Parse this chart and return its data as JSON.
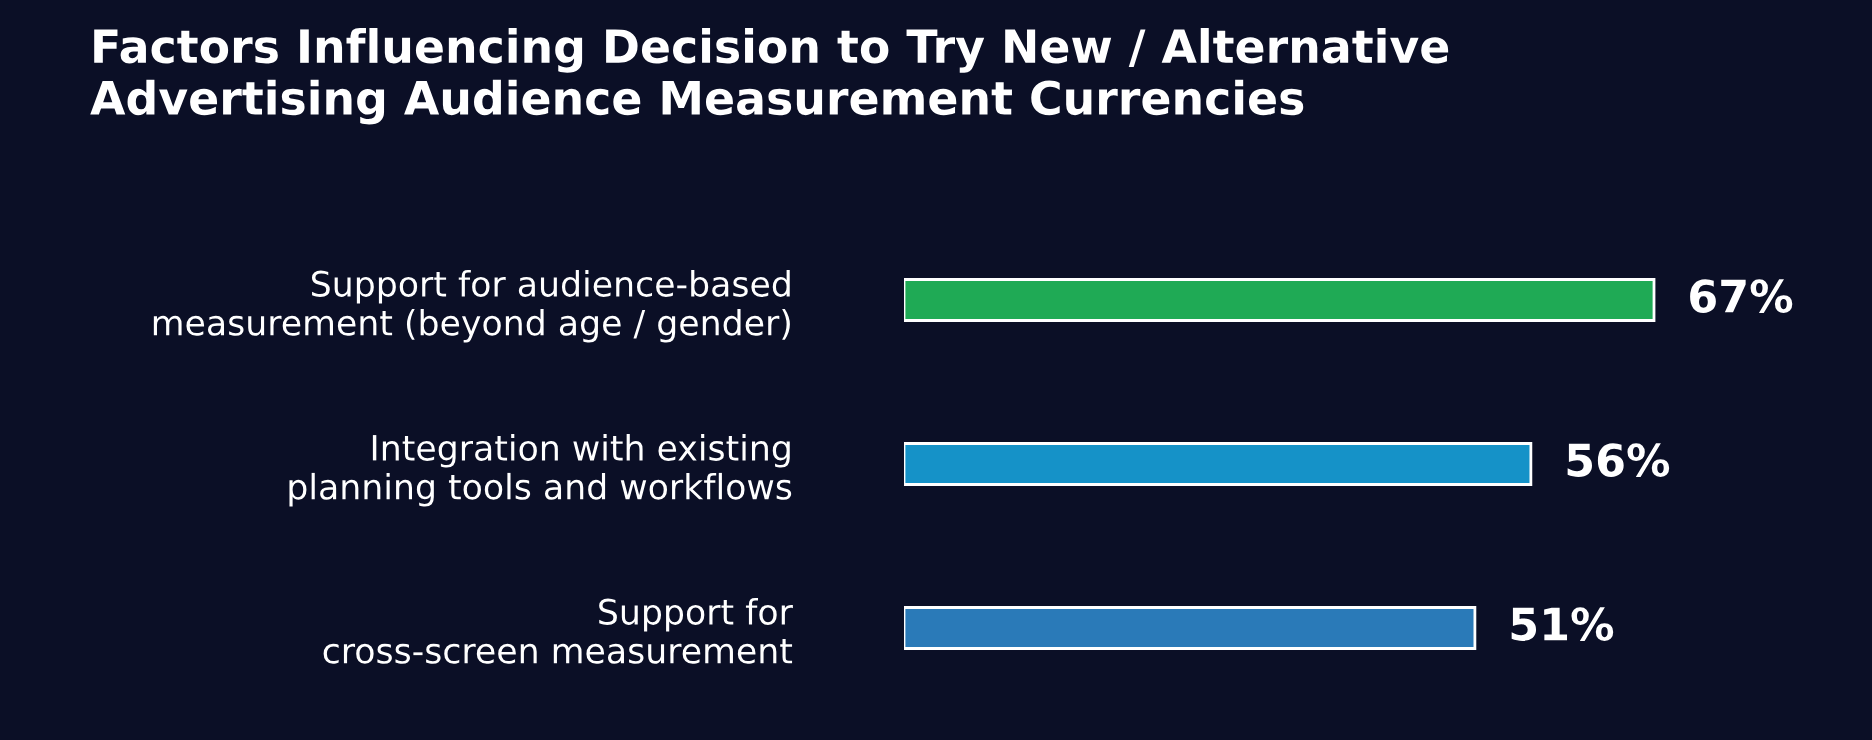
{
  "chart_data": {
    "type": "bar",
    "orientation": "horizontal",
    "title": "Factors Influencing Decision to Try New / Alternative\nAdvertising Audience Measurement Currencies",
    "categories": [
      "Support for audience-based\nmeasurement (beyond age / gender)",
      "Integration with existing\nplanning tools and workflows",
      "Support for\ncross-screen measurement"
    ],
    "values": [
      67,
      56,
      51
    ],
    "value_labels": [
      "67%",
      "56%",
      "51%"
    ],
    "colors": [
      "#1faa55",
      "#1592c8",
      "#2a7ab8"
    ],
    "legend": false,
    "grid": false
  }
}
